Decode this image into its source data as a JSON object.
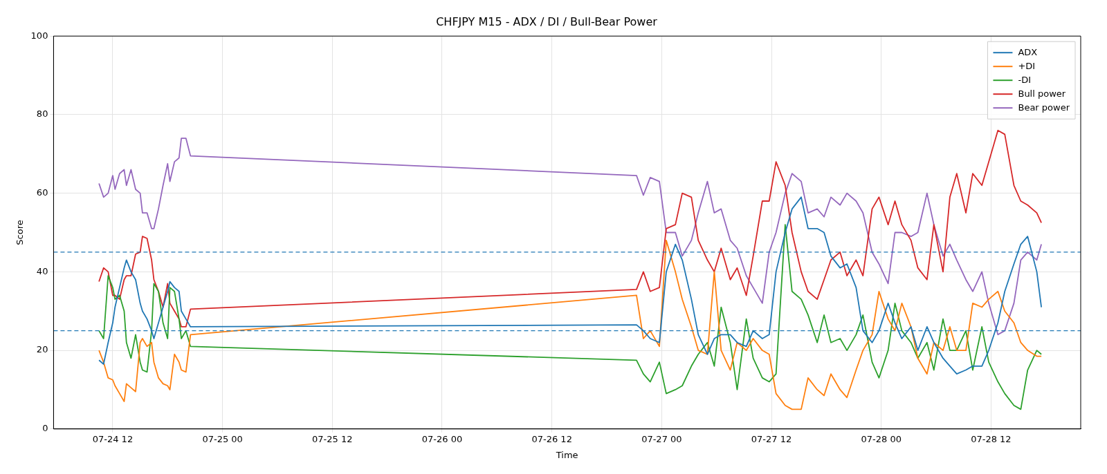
{
  "chart_data": {
    "type": "line",
    "title": "CHFJPY M15 - ADX / DI / Bull-Bear Power",
    "xlabel": "Time",
    "ylabel": "Score",
    "x": [
      "--07-24T10:30",
      "--07-24T11:00",
      "--07-24T11:30",
      "--07-24T12:00",
      "--07-24T12:15",
      "--07-24T12:45",
      "--07-24T13:15",
      "--07-24T13:30",
      "--07-24T14:00",
      "--07-24T14:30",
      "--07-24T15:00",
      "--07-24T15:15",
      "--07-24T15:45",
      "--07-24T16:15",
      "--07-24T16:30",
      "--07-24T17:00",
      "--07-24T17:30",
      "--07-24T18:00",
      "--07-24T18:15",
      "--07-24T18:45",
      "--07-24T19:15",
      "--07-24T19:30",
      "--07-24T20:00",
      "--07-24T20:30",
      "--07-26T21:15",
      "--07-26T22:00",
      "--07-26T22:45",
      "--07-26T23:45",
      "--07-27T00:30",
      "--07-27T01:30",
      "--07-27T02:15",
      "--07-27T03:15",
      "--07-27T04:00",
      "--07-27T05:00",
      "--07-27T05:45",
      "--07-27T06:30",
      "--07-27T07:30",
      "--07-27T08:15",
      "--07-27T09:15",
      "--07-27T10:00",
      "--07-27T11:00",
      "--07-27T11:45",
      "--07-27T12:30",
      "--07-27T13:30",
      "--07-27T14:15",
      "--07-27T15:15",
      "--07-27T16:00",
      "--07-27T17:00",
      "--07-27T17:45",
      "--07-27T18:30",
      "--07-27T19:30",
      "--07-27T20:15",
      "--07-27T21:15",
      "--07-27T22:00",
      "--07-27T23:00",
      "--07-27T23:45",
      "--07-28T00:45",
      "--07-28T01:30",
      "--07-28T02:15",
      "--07-28T03:15",
      "--07-28T04:00",
      "--07-28T05:00",
      "--07-28T05:45",
      "--07-28T06:45",
      "--07-28T07:30",
      "--07-28T08:15",
      "--07-28T09:15",
      "--07-28T10:00",
      "--07-28T11:00",
      "--07-28T11:45",
      "--07-28T12:45",
      "--07-28T13:30",
      "--07-28T14:30",
      "--07-28T15:15",
      "--07-28T16:00",
      "--07-28T17:00",
      "--07-28T17:30"
    ],
    "series": [
      {
        "name": "ADX",
        "color": "#1f77b4",
        "values": [
          17.5,
          16.5,
          22,
          27,
          31,
          36,
          41,
          43,
          40,
          38,
          32,
          30,
          28,
          25,
          23,
          27,
          31,
          35,
          37.5,
          36,
          35,
          30,
          28,
          26,
          26.5,
          25,
          23,
          22,
          40,
          47,
          43,
          33,
          24,
          19,
          23,
          24,
          24,
          22,
          21,
          25,
          23,
          24,
          40,
          50,
          56,
          59,
          51,
          51,
          50,
          44,
          41,
          42,
          36,
          25,
          22,
          25,
          32,
          27,
          23,
          26,
          20,
          26,
          22,
          18,
          16,
          14,
          15,
          16,
          16,
          20,
          27,
          35,
          42,
          47,
          49,
          40,
          31
        ]
      },
      {
        "name": "+DI",
        "color": "#ff7f0e",
        "values": [
          20,
          17,
          13,
          12.5,
          11,
          9,
          7,
          11.5,
          10.5,
          9.5,
          22,
          23,
          21,
          22,
          17,
          13,
          11.5,
          11,
          10,
          19,
          17,
          15,
          14.5,
          24,
          34,
          23,
          25,
          21,
          48,
          40,
          33,
          26,
          20,
          19,
          40,
          20,
          15,
          22,
          20,
          23,
          20,
          19,
          9,
          6,
          5,
          5,
          13,
          10,
          8.5,
          14,
          10,
          8,
          15,
          20,
          24,
          35,
          28,
          25,
          32,
          26,
          18,
          14,
          22,
          20,
          26,
          20,
          20,
          32,
          31,
          33,
          35,
          30,
          27,
          22,
          20,
          18.5,
          18.5
        ]
      },
      {
        "name": "-DI",
        "color": "#2ca02c",
        "values": [
          25,
          23,
          39,
          36,
          33,
          34,
          30,
          22,
          18,
          24,
          17,
          15,
          14.5,
          25,
          37,
          35,
          27,
          23,
          36,
          35,
          28,
          23,
          25,
          21,
          17.5,
          14,
          12,
          17,
          9,
          10,
          11,
          16,
          19,
          22,
          16,
          31,
          22,
          10,
          28,
          18,
          13,
          12,
          14,
          52,
          35,
          33,
          29,
          22,
          29,
          22,
          23,
          20,
          24,
          29,
          17,
          13,
          20,
          32,
          25,
          22,
          18,
          22,
          15,
          28,
          20,
          20,
          25,
          15,
          26,
          17,
          12,
          9,
          6,
          5,
          15,
          20,
          19
        ]
      },
      {
        "name": "Bull power",
        "color": "#d62728",
        "values": [
          37.5,
          41,
          40,
          34,
          34,
          33,
          38,
          39,
          39,
          44.5,
          45,
          49,
          48.5,
          43,
          38,
          35,
          31,
          37,
          32,
          30,
          28,
          26,
          26,
          30.5,
          35.5,
          40,
          35,
          36,
          51,
          52,
          60,
          59,
          48,
          43,
          40,
          46,
          38,
          41,
          34,
          44,
          58,
          58,
          68,
          62,
          50,
          40,
          35,
          33,
          38,
          43,
          45,
          39,
          43,
          39,
          56,
          59,
          52,
          58,
          52,
          48,
          41,
          38,
          52,
          40,
          59,
          65,
          55,
          65,
          62,
          68,
          76,
          75,
          62,
          58,
          57,
          55,
          52.5
        ]
      },
      {
        "name": "Bear power",
        "color": "#9467bd",
        "values": [
          62.5,
          59,
          60,
          64.5,
          61,
          65,
          66,
          62,
          66,
          61,
          60,
          55,
          55,
          51,
          51,
          56,
          62,
          67.5,
          63,
          68,
          69,
          74,
          74,
          69.5,
          64.5,
          59.5,
          64,
          63,
          50,
          50,
          44,
          48,
          55,
          63,
          55,
          56,
          48,
          46,
          39,
          36,
          32,
          45,
          50,
          60,
          65,
          63,
          55,
          56,
          54,
          59,
          57,
          60,
          58,
          55,
          45,
          42,
          37,
          50,
          50,
          49,
          50,
          60,
          52,
          44,
          47,
          43,
          38,
          35,
          40,
          32,
          24,
          25,
          32,
          43,
          45,
          43,
          47
        ]
      }
    ],
    "xlim": [
      "--07-24T05:32",
      "--07-28T21:48"
    ],
    "xticks": [
      {
        "value": "--07-24T12:00",
        "label": "07-24 12"
      },
      {
        "value": "--07-25T00:00",
        "label": "07-25 00"
      },
      {
        "value": "--07-25T12:00",
        "label": "07-25 12"
      },
      {
        "value": "--07-26T00:00",
        "label": "07-26 00"
      },
      {
        "value": "--07-26T12:00",
        "label": "07-26 12"
      },
      {
        "value": "--07-27T00:00",
        "label": "07-27 00"
      },
      {
        "value": "--07-27T12:00",
        "label": "07-27 12"
      },
      {
        "value": "--07-28T00:00",
        "label": "07-28 00"
      },
      {
        "value": "--07-28T12:00",
        "label": "07-28 12"
      }
    ],
    "ylim": [
      0,
      100
    ],
    "yticks": [
      0,
      20,
      40,
      60,
      80,
      100
    ],
    "ref_lines": [
      {
        "axis": "y",
        "value": 45,
        "color": "#1f77b4",
        "line_style": "dashed"
      },
      {
        "axis": "y",
        "value": 25,
        "color": "#1f77b4",
        "line_style": "dashed"
      }
    ],
    "grid": true,
    "legend": "top right"
  }
}
